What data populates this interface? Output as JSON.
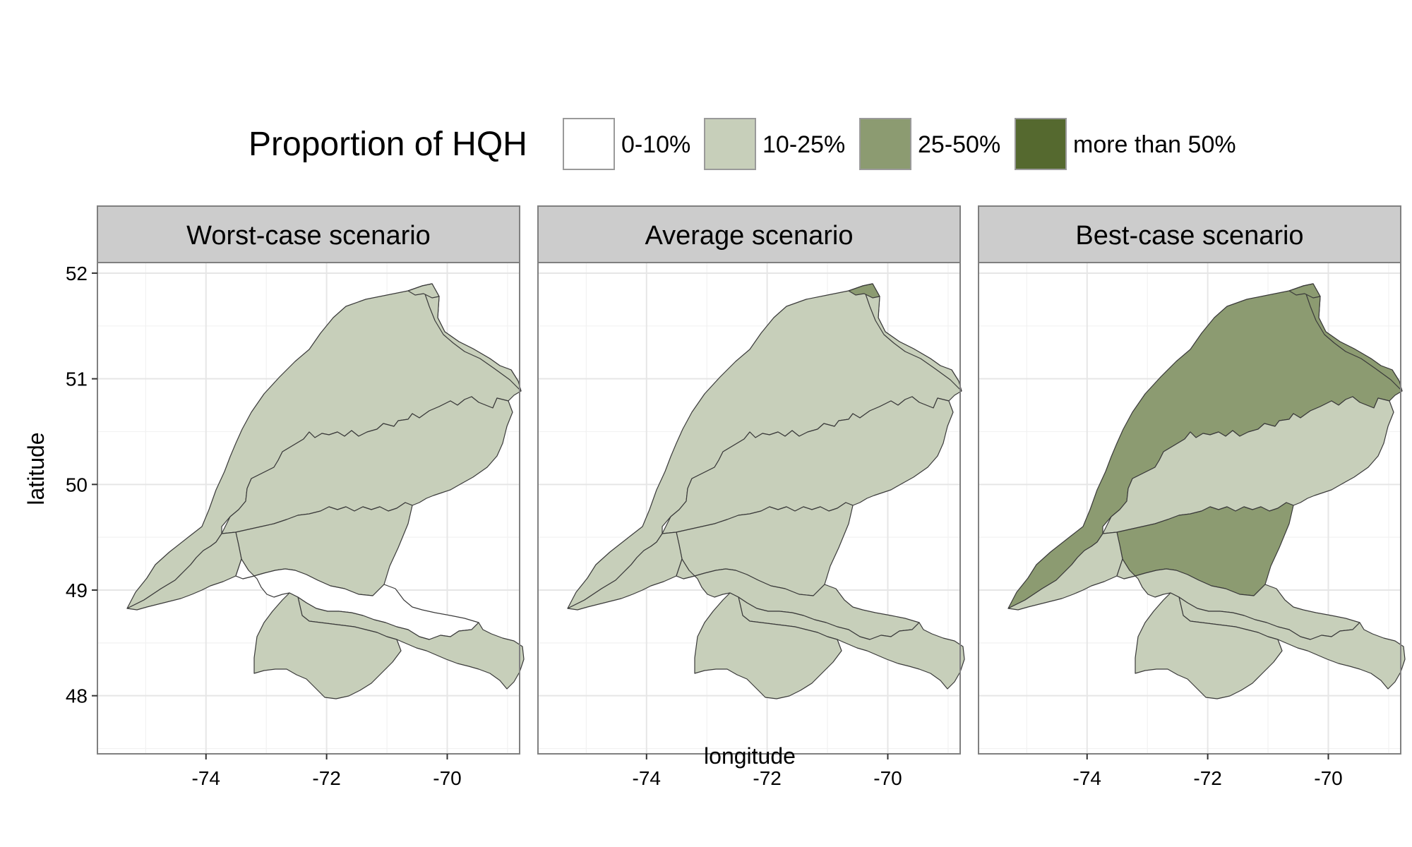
{
  "legend": {
    "title": "Proportion of HQH",
    "items": [
      {
        "label": "0-10%",
        "color": "#ffffff"
      },
      {
        "label": "10-25%",
        "color": "#c7cfba"
      },
      {
        "label": "25-50%",
        "color": "#8c9b71"
      },
      {
        "label": "more than 50%",
        "color": "#55692f"
      }
    ]
  },
  "panels": [
    {
      "title": "Worst-case scenario",
      "fills": {
        "north": "#c7cfba",
        "middle": "#c7cfba",
        "south": "#c7cfba",
        "southwest": "#c7cfba",
        "east_strip": "#c7cfba",
        "central": "#ffffff",
        "southeast": "#c7cfba",
        "tip": "#c7cfba"
      }
    },
    {
      "title": "Average scenario",
      "fills": {
        "north": "#c7cfba",
        "middle": "#c7cfba",
        "south": "#c7cfba",
        "southwest": "#c7cfba",
        "east_strip": "#c7cfba",
        "central": "#c7cfba",
        "southeast": "#c7cfba",
        "tip": "#8c9b71"
      }
    },
    {
      "title": "Best-case scenario",
      "fills": {
        "north": "#8c9b71",
        "middle": "#c7cfba",
        "south": "#8c9b71",
        "southwest": "#c7cfba",
        "east_strip": "#8c9b71",
        "central": "#c7cfba",
        "southeast": "#c7cfba",
        "tip": "#8c9b71"
      }
    }
  ],
  "axes": {
    "xlabel": "longitude",
    "ylabel": "latitude",
    "x_ticks": [
      -74,
      -72,
      -70
    ],
    "y_ticks": [
      52,
      51,
      50,
      49,
      48
    ],
    "x_range": [
      -75.8,
      -68.8
    ],
    "y_range": [
      47.45,
      52.1
    ]
  }
}
